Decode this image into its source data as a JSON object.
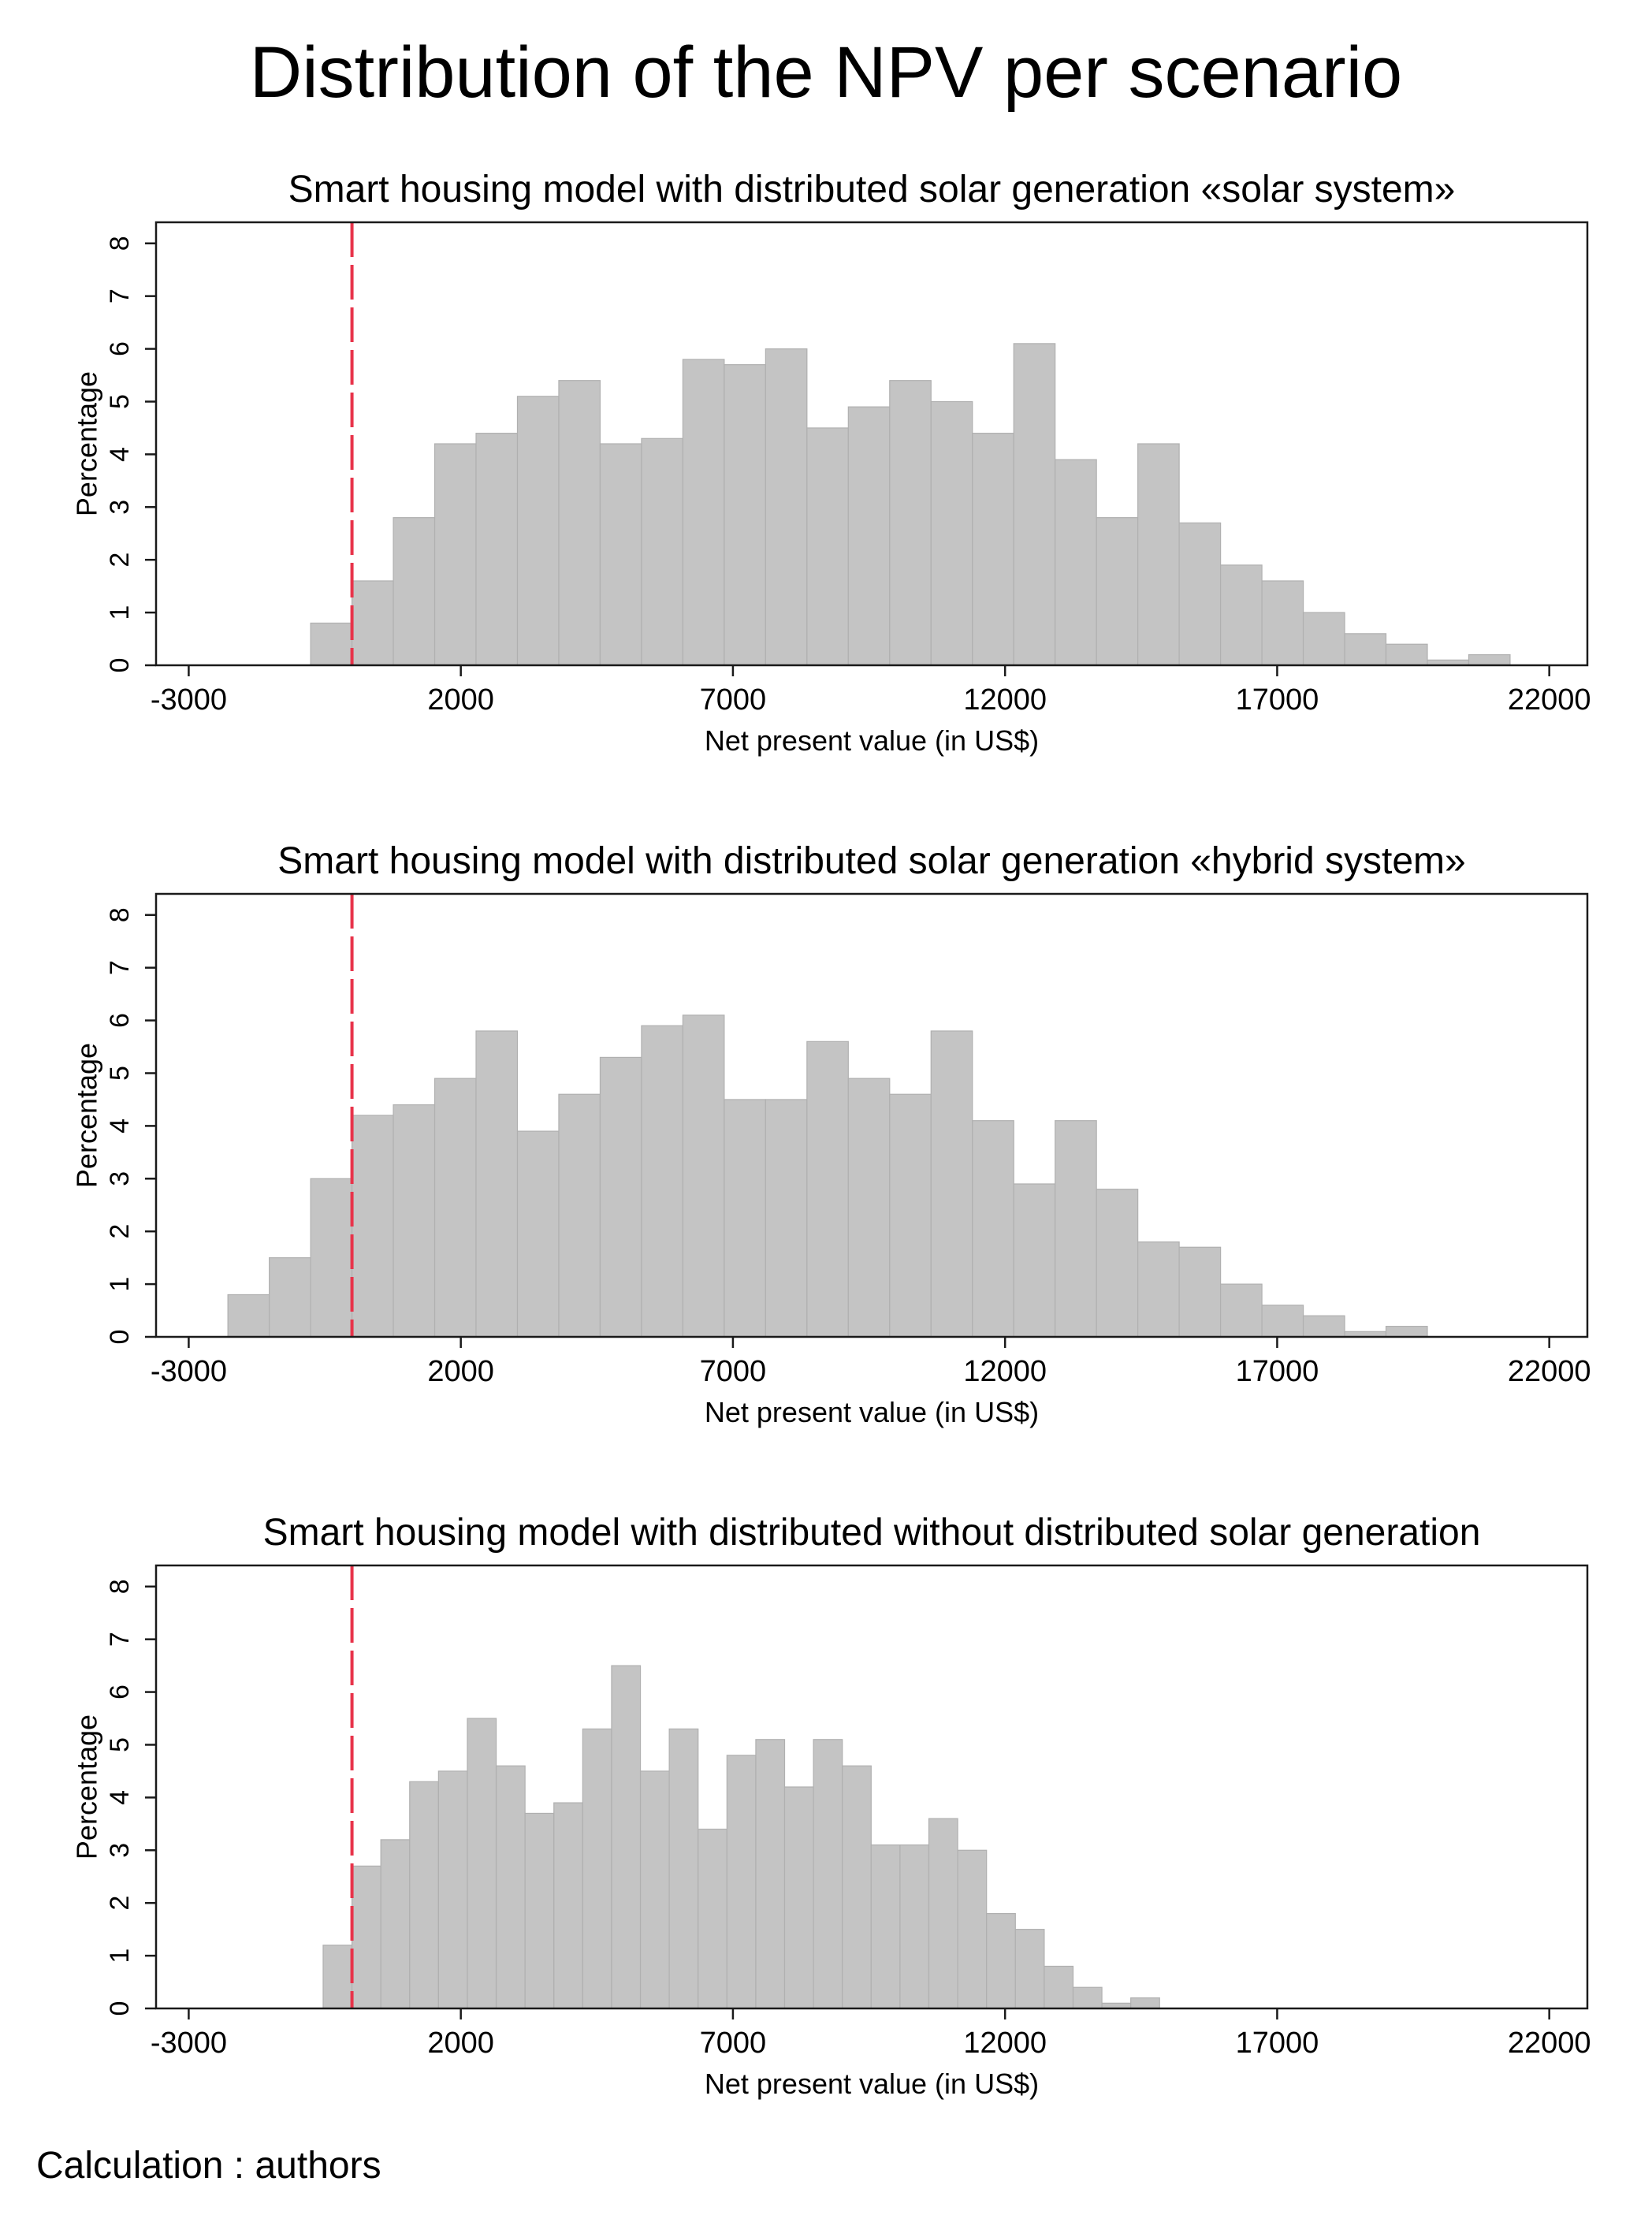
{
  "figure": {
    "title": "Distribution of the NPV per scenario",
    "footnote": "Calculation : authors"
  },
  "chart_data": [
    {
      "type": "histogram",
      "title": "Smart housing model with distributed solar generation «solar system»",
      "xlabel": "Net present value (in US$)",
      "ylabel": "Percentage",
      "xlim": [
        -3600,
        22700
      ],
      "ylim": [
        0,
        8.4
      ],
      "xticks": [
        -3000,
        2000,
        7000,
        12000,
        17000,
        22000
      ],
      "yticks": [
        0,
        1,
        2,
        3,
        4,
        5,
        6,
        7,
        8
      ],
      "reference_line": {
        "x": 0,
        "style": "dashed",
        "color": "#e8334a"
      },
      "bar_color": "#c4c4c4",
      "bin_width": 760,
      "bin_start": -760,
      "values": [
        0.8,
        1.6,
        2.8,
        4.2,
        4.4,
        5.1,
        5.4,
        4.2,
        4.3,
        5.8,
        5.7,
        6.0,
        4.5,
        4.9,
        5.4,
        5.0,
        4.4,
        6.1,
        3.9,
        2.8,
        4.2,
        2.7,
        1.9,
        1.6,
        1.0,
        0.6,
        0.4,
        0.1,
        0.2
      ]
    },
    {
      "type": "histogram",
      "title": "Smart housing model with distributed solar generation «hybrid system»",
      "xlabel": "Net present value (in US$)",
      "ylabel": "Percentage",
      "xlim": [
        -3600,
        22700
      ],
      "ylim": [
        0,
        8.4
      ],
      "xticks": [
        -3000,
        2000,
        7000,
        12000,
        17000,
        22000
      ],
      "yticks": [
        0,
        1,
        2,
        3,
        4,
        5,
        6,
        7,
        8
      ],
      "reference_line": {
        "x": 0,
        "style": "dashed",
        "color": "#e8334a"
      },
      "bar_color": "#c4c4c4",
      "bin_width": 760,
      "bin_start": -2280,
      "values": [
        0.8,
        1.5,
        3.0,
        4.2,
        4.4,
        4.9,
        5.8,
        3.9,
        4.6,
        5.3,
        5.9,
        6.1,
        4.5,
        4.5,
        5.6,
        4.9,
        4.6,
        5.8,
        4.1,
        2.9,
        4.1,
        2.8,
        1.8,
        1.7,
        1.0,
        0.6,
        0.4,
        0.1,
        0.2
      ]
    },
    {
      "type": "histogram",
      "title": "Smart housing model with distributed without distributed solar generation",
      "xlabel": "Net present value (in US$)",
      "ylabel": "Percentage",
      "xlim": [
        -3600,
        22700
      ],
      "ylim": [
        0,
        8.4
      ],
      "xticks": [
        -3000,
        2000,
        7000,
        12000,
        17000,
        22000
      ],
      "yticks": [
        0,
        1,
        2,
        3,
        4,
        5,
        6,
        7,
        8
      ],
      "reference_line": {
        "x": 0,
        "style": "dashed",
        "color": "#e8334a"
      },
      "bar_color": "#c4c4c4",
      "bin_width": 530,
      "bin_start": -530,
      "values": [
        1.2,
        2.7,
        3.2,
        4.3,
        4.5,
        5.5,
        4.6,
        3.7,
        3.9,
        5.3,
        6.5,
        4.5,
        5.3,
        3.4,
        4.8,
        5.1,
        4.2,
        5.1,
        4.6,
        3.1,
        3.1,
        3.6,
        3.0,
        1.8,
        1.5,
        0.8,
        0.4,
        0.1,
        0.2
      ]
    }
  ]
}
